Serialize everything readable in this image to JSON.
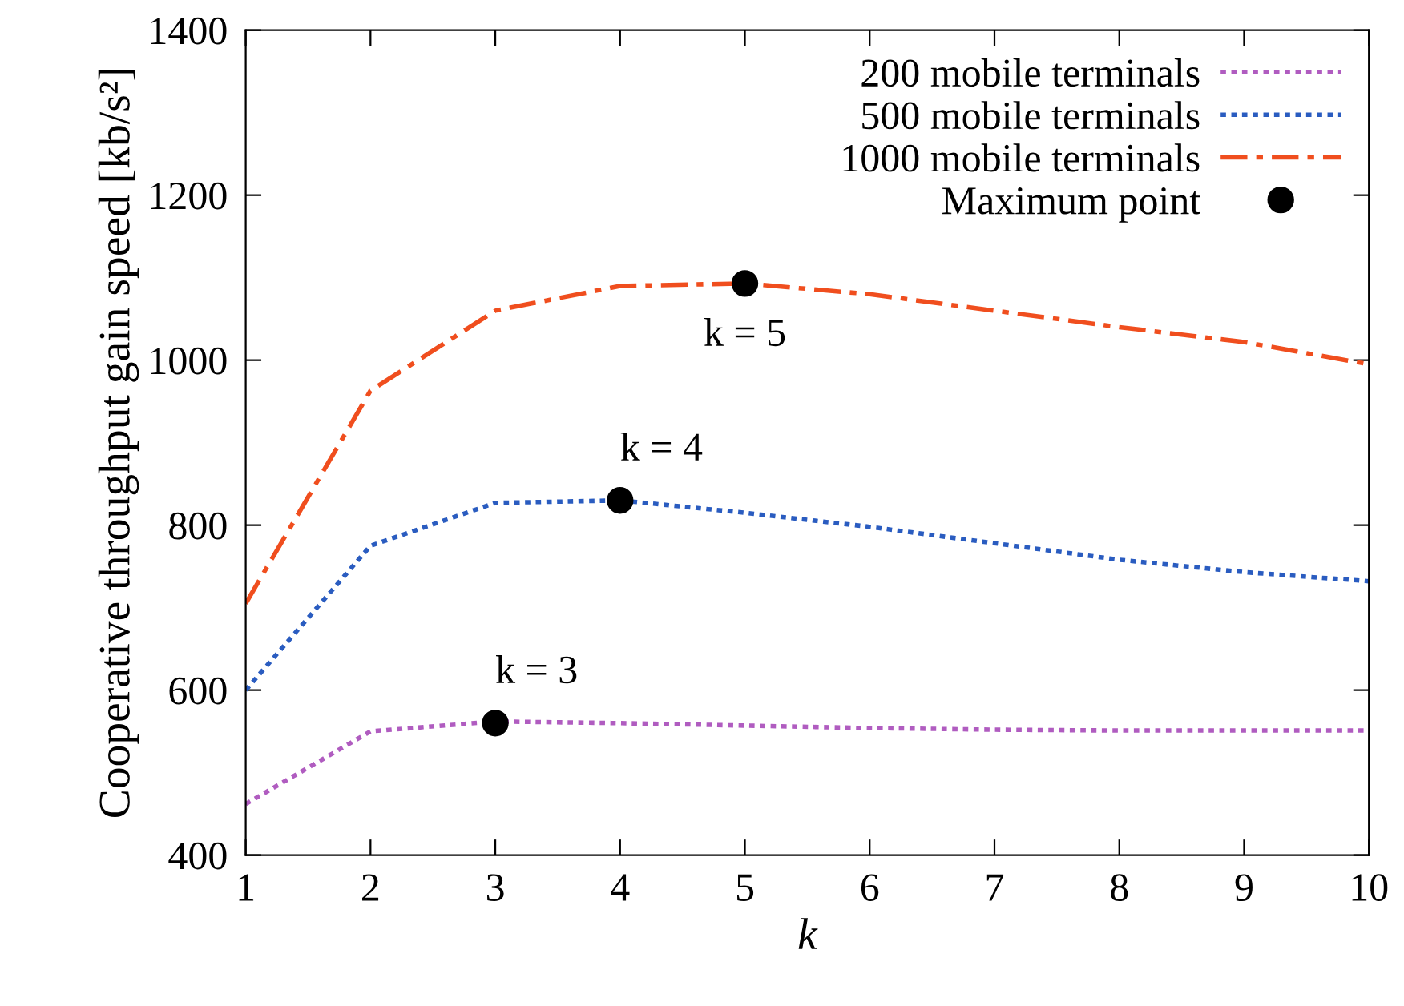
{
  "chart_data": {
    "type": "line",
    "xlabel": "k",
    "ylabel": "Cooperative throughput gain speed [kb/s²]",
    "x": [
      1,
      2,
      3,
      4,
      5,
      6,
      7,
      8,
      9,
      10
    ],
    "series": [
      {
        "name": "200 mobile terminals",
        "color": "#b05cc0",
        "line_style": "dotted",
        "values": [
          462,
          550,
          562,
          560,
          557,
          554,
          552,
          551,
          551,
          551
        ]
      },
      {
        "name": "500 mobile terminals",
        "color": "#2a5cc0",
        "line_style": "dotted",
        "values": [
          600,
          775,
          827,
          830,
          815,
          798,
          778,
          758,
          743,
          732
        ]
      },
      {
        "name": "1000 mobile terminals",
        "color": "#f04e1e",
        "line_style": "dashdot",
        "values": [
          705,
          963,
          1060,
          1090,
          1093,
          1080,
          1060,
          1040,
          1022,
          995
        ]
      },
      {
        "name": "Maximum point",
        "type": "scatter",
        "color": "#000000",
        "marker": "circle",
        "x": [
          3,
          4,
          5
        ],
        "values": [
          560,
          830,
          1093
        ]
      }
    ],
    "annotations": [
      {
        "text": "k = 3",
        "x": 3,
        "y": 560
      },
      {
        "text": "k = 4",
        "x": 4,
        "y": 830
      },
      {
        "text": "k = 5",
        "x": 5,
        "y": 1093
      }
    ],
    "xlim": [
      1,
      10
    ],
    "xticks": [
      1,
      2,
      3,
      4,
      5,
      6,
      7,
      8,
      9,
      10
    ],
    "ylim": [
      400,
      1400
    ],
    "yticks": [
      400,
      600,
      800,
      1000,
      1200,
      1400
    ],
    "grid": false,
    "legend": "top right"
  }
}
